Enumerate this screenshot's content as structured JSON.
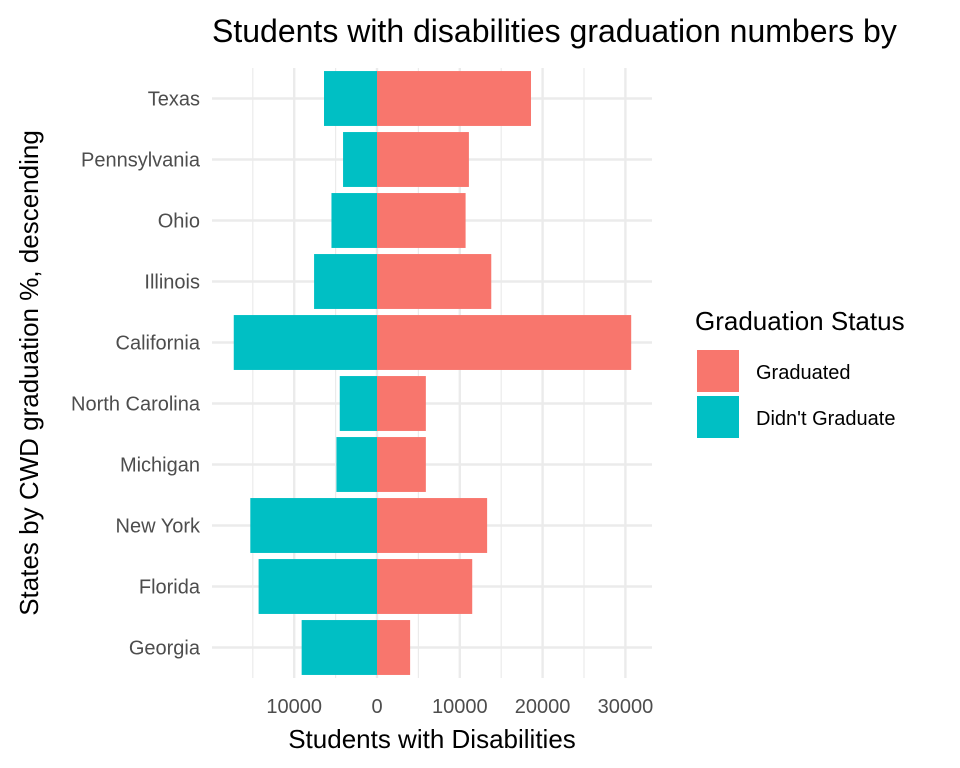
{
  "chart_data": {
    "type": "bar",
    "orientation": "horizontal",
    "stacking": "diverging",
    "title": "Students with disabilities graduation numbers by",
    "xlabel": "Students with Disabilities",
    "ylabel": "States by CWD graduation %, descending",
    "xlim": [
      -17500,
      33000
    ],
    "x_ticks": [
      {
        "value": -10000,
        "label": "10000"
      },
      {
        "value": 0,
        "label": "0"
      },
      {
        "value": 10000,
        "label": "10000"
      },
      {
        "value": 20000,
        "label": "20000"
      },
      {
        "value": 30000,
        "label": "30000"
      }
    ],
    "categories": [
      "Texas",
      "Pennsylvania",
      "Ohio",
      "Illinois",
      "California",
      "North Carolina",
      "Michigan",
      "New York",
      "Florida",
      "Georgia"
    ],
    "series": [
      {
        "name": "Graduated",
        "color": "#F8766D",
        "values": [
          18600,
          11100,
          10700,
          13800,
          30700,
          5900,
          5900,
          13300,
          11500,
          4000
        ]
      },
      {
        "name": "Didn't Graduate",
        "color": "#00BFC4",
        "values": [
          -6400,
          -4100,
          -5500,
          -7600,
          -17300,
          -4500,
          -4900,
          -15300,
          -14300,
          -9100
        ]
      }
    ],
    "legend": {
      "title": "Graduation Status",
      "position": "right"
    },
    "grid": true
  }
}
